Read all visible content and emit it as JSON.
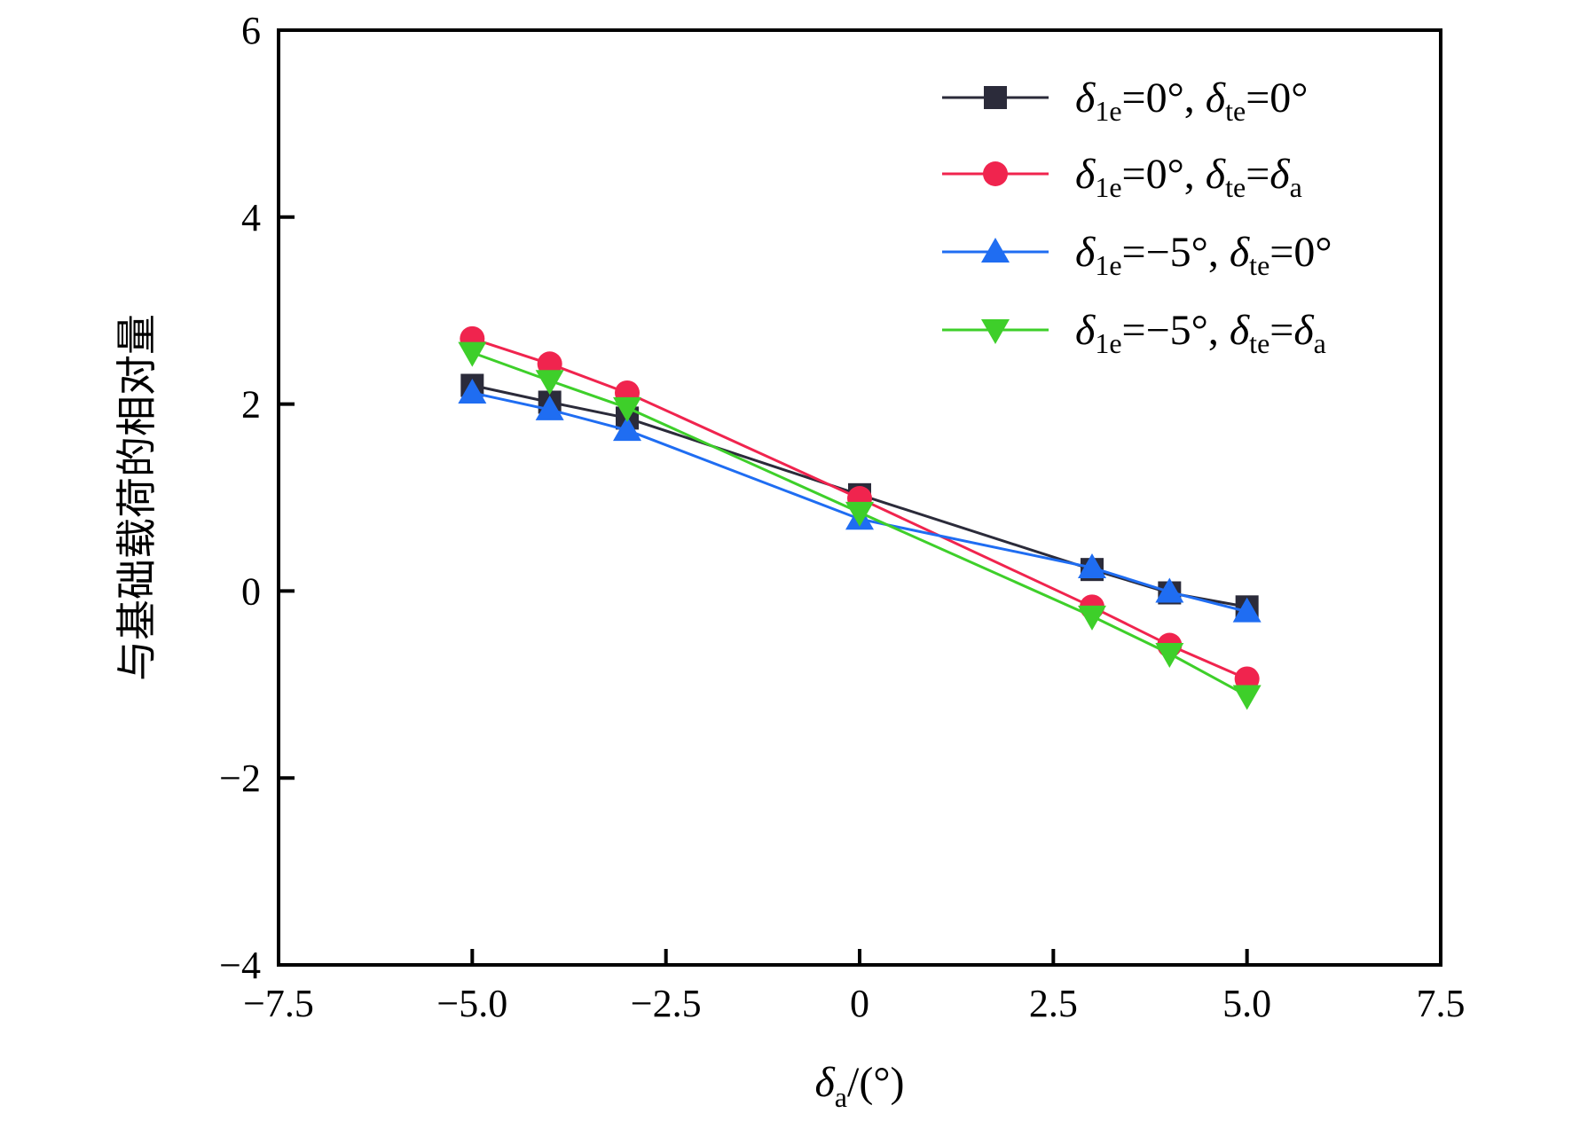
{
  "chart_data": {
    "type": "line",
    "xlabel": "δa/(°)",
    "ylabel": "与基础载荷的相对量",
    "xlim": [
      -7.5,
      7.5
    ],
    "ylim": [
      -4,
      6
    ],
    "x_ticks": [
      "−7.5",
      "−5.0",
      "−2.5",
      "0",
      "2.5",
      "5.0",
      "7.5"
    ],
    "x_tick_values": [
      -7.5,
      -5.0,
      -2.5,
      0,
      2.5,
      5.0,
      7.5
    ],
    "y_ticks": [
      "−4",
      "−2",
      "0",
      "2",
      "4",
      "6"
    ],
    "y_tick_values": [
      -4,
      -2,
      0,
      2,
      4,
      6
    ],
    "grid": false,
    "legend_position": "top-right",
    "x": [
      -5,
      -4,
      -3,
      0,
      3,
      4,
      5
    ],
    "series": [
      {
        "name": "δ1e=0°, δte=0°",
        "marker": "square",
        "color": "#2b2b3a",
        "values": [
          2.2,
          2.02,
          1.85,
          1.03,
          0.23,
          -0.02,
          -0.17
        ]
      },
      {
        "name": "δ1e=0°, δte=δa",
        "marker": "circle",
        "color": "#f0244e",
        "values": [
          2.7,
          2.43,
          2.12,
          0.99,
          -0.17,
          -0.58,
          -0.94
        ]
      },
      {
        "name": "δ1e=−5°, δte=0°",
        "marker": "triangle-up",
        "color": "#1f6df2",
        "values": [
          2.12,
          1.94,
          1.72,
          0.77,
          0.25,
          -0.01,
          -0.22
        ]
      },
      {
        "name": "δ1e=−5°, δte=δa",
        "marker": "triangle-down",
        "color": "#3ecf2a",
        "values": [
          2.55,
          2.25,
          1.96,
          0.84,
          -0.27,
          -0.67,
          -1.12
        ]
      }
    ]
  }
}
